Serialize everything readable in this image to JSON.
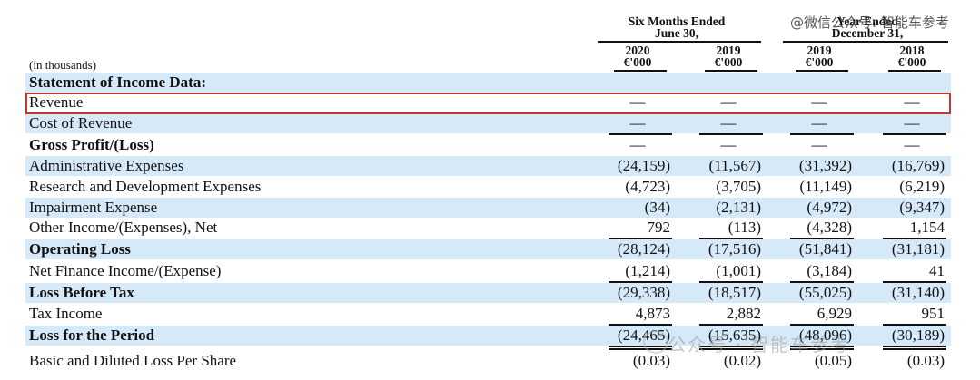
{
  "header": {
    "group1_title": "Six Months Ended",
    "group1_sub": "June 30,",
    "group2_title": "Year Ended",
    "group2_sub": "December 31,",
    "unit_note": "(in thousands)",
    "columns": [
      {
        "year": "2020",
        "unit": "€'000"
      },
      {
        "year": "2019",
        "unit": "€'000"
      },
      {
        "year": "2019",
        "unit": "€'000"
      },
      {
        "year": "2018",
        "unit": "€'000"
      }
    ]
  },
  "watermark_top": "@微信公众号: 智能车参考",
  "watermark_bottom": "公众号 · 智能车参考",
  "highlight_color": "#c0392b",
  "shade_color": "#d6e9f8",
  "rows": [
    {
      "label": "Statement of Income Data:",
      "bold": true,
      "shade": true,
      "values": [
        "",
        "",
        "",
        ""
      ]
    },
    {
      "label": "Revenue",
      "bold": false,
      "shade": false,
      "values": [
        "—",
        "—",
        "—",
        "—"
      ]
    },
    {
      "label": "Cost of Revenue",
      "bold": false,
      "shade": true,
      "values": [
        "—",
        "—",
        "—",
        "—"
      ]
    },
    {
      "label": "Gross Profit/(Loss)",
      "bold": true,
      "shade": false,
      "values": [
        "—",
        "—",
        "—",
        "—"
      ]
    },
    {
      "label": "Administrative Expenses",
      "bold": false,
      "shade": true,
      "values": [
        "(24,159)",
        "(11,567)",
        "(31,392)",
        "(16,769)"
      ]
    },
    {
      "label": "Research and Development Expenses",
      "bold": false,
      "shade": false,
      "values": [
        "(4,723)",
        "(3,705)",
        "(11,149)",
        "(6,219)"
      ]
    },
    {
      "label": "Impairment Expense",
      "bold": false,
      "shade": true,
      "values": [
        "(34)",
        "(2,131)",
        "(4,972)",
        "(9,347)"
      ]
    },
    {
      "label": "Other Income/(Expenses), Net",
      "bold": false,
      "shade": false,
      "values": [
        "792",
        "(113)",
        "(4,328)",
        "1,154"
      ]
    },
    {
      "label": "Operating Loss",
      "bold": true,
      "shade": true,
      "values": [
        "(28,124)",
        "(17,516)",
        "(51,841)",
        "(31,181)"
      ]
    },
    {
      "label": "Net Finance Income/(Expense)",
      "bold": false,
      "shade": false,
      "values": [
        "(1,214)",
        "(1,001)",
        "(3,184)",
        "41"
      ]
    },
    {
      "label": "Loss Before Tax",
      "bold": true,
      "shade": true,
      "values": [
        "(29,338)",
        "(18,517)",
        "(55,025)",
        "(31,140)"
      ]
    },
    {
      "label": "Tax Income",
      "bold": false,
      "shade": false,
      "values": [
        "4,873",
        "2,882",
        "6,929",
        "951"
      ]
    },
    {
      "label": "Loss for the Period",
      "bold": true,
      "shade": true,
      "values": [
        "(24,465)",
        "(15,635)",
        "(48,096)",
        "(30,189)"
      ]
    },
    {
      "label": "Basic and Diluted Loss Per Share",
      "bold": false,
      "shade": false,
      "values": [
        "(0.03)",
        "(0.02)",
        "(0.05)",
        "(0.03)"
      ]
    }
  ]
}
